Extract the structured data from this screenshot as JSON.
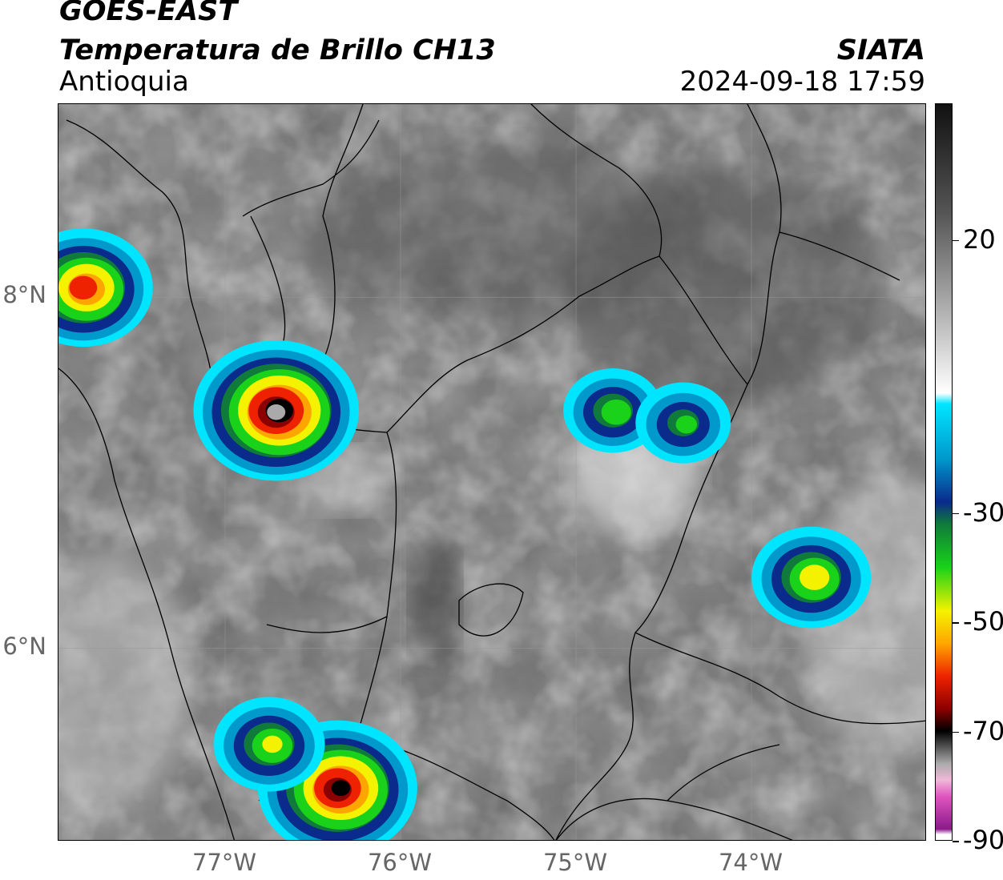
{
  "header": {
    "satellite": "GOES-EAST",
    "product": "Temperatura de Brillo CH13",
    "region": "Antioquia",
    "agency": "SIATA",
    "datetime": "2024-09-18 17:59"
  },
  "map": {
    "lat_range": [
      4.9,
      9.1
    ],
    "lon_range": [
      -77.95,
      -73.0
    ],
    "lat_ticks": [
      {
        "value": 8,
        "label": "8°N"
      },
      {
        "value": 6,
        "label": "6°N"
      }
    ],
    "lon_ticks": [
      {
        "value": -77,
        "label": "77°W"
      },
      {
        "value": -76,
        "label": "76°W"
      },
      {
        "value": -75,
        "label": "75°W"
      },
      {
        "value": -74,
        "label": "74°W"
      }
    ],
    "gridlines": true,
    "background_colormap": "grayscale"
  },
  "colorbar": {
    "range": [
      -90,
      45
    ],
    "ticks": [
      {
        "value": 20,
        "label": "20"
      },
      {
        "value": -30,
        "label": "-30"
      },
      {
        "value": -50,
        "label": "-50"
      },
      {
        "value": -70,
        "label": "-70"
      },
      {
        "value": -90,
        "label": "-90"
      }
    ],
    "stops": [
      {
        "value": 45,
        "color": "#111111"
      },
      {
        "value": 35,
        "color": "#333333"
      },
      {
        "value": 25,
        "color": "#555555"
      },
      {
        "value": 15,
        "color": "#888888"
      },
      {
        "value": 5,
        "color": "#bbbbbb"
      },
      {
        "value": -8,
        "color": "#ffffff"
      },
      {
        "value": -10,
        "color": "#00e5ff"
      },
      {
        "value": -20,
        "color": "#0099cc"
      },
      {
        "value": -28,
        "color": "#0a2a8c"
      },
      {
        "value": -32,
        "color": "#0f7a3a"
      },
      {
        "value": -40,
        "color": "#19d219"
      },
      {
        "value": -48,
        "color": "#f5f200"
      },
      {
        "value": -54,
        "color": "#ffa500"
      },
      {
        "value": -60,
        "color": "#ee2200"
      },
      {
        "value": -66,
        "color": "#8b0000"
      },
      {
        "value": -70,
        "color": "#000000"
      },
      {
        "value": -76,
        "color": "#aaaaaa"
      },
      {
        "value": -79,
        "color": "#f0b8d8"
      },
      {
        "value": -82,
        "color": "#e055c0"
      },
      {
        "value": -88,
        "color": "#8a1a8a"
      },
      {
        "value": -89,
        "color": "#ffffff"
      }
    ]
  },
  "storms": [
    {
      "lon": -76.7,
      "lat": 7.35,
      "min_temp": -75
    },
    {
      "lon": -77.8,
      "lat": 8.05,
      "min_temp": -62
    },
    {
      "lon": -76.35,
      "lat": 5.2,
      "min_temp": -72
    },
    {
      "lon": -74.78,
      "lat": 7.35,
      "min_temp": -42
    },
    {
      "lon": -74.38,
      "lat": 7.28,
      "min_temp": -40
    },
    {
      "lon": -73.65,
      "lat": 6.4,
      "min_temp": -52
    },
    {
      "lon": -76.74,
      "lat": 5.45,
      "min_temp": -48
    }
  ]
}
